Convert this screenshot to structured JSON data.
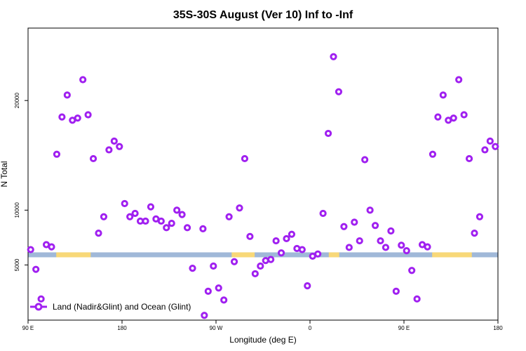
{
  "chart_data": {
    "type": "scatter",
    "title": "35S-30S August (Ver 10)   Inf to -Inf",
    "xlabel": "Longitude (deg E)",
    "ylabel": "N Total",
    "x_ticks": [
      {
        "value": 90,
        "label": "90 E"
      },
      {
        "value": 180,
        "label": "180"
      },
      {
        "value": 270,
        "label": "90 W"
      },
      {
        "value": 360,
        "label": "0"
      },
      {
        "value": 450,
        "label": "90 E"
      },
      {
        "value": 540,
        "label": "180"
      }
    ],
    "y_ticks": [
      {
        "value": 5000,
        "label": "5000"
      },
      {
        "value": 10000,
        "label": "10000"
      },
      {
        "value": 20000,
        "label": "20000"
      }
    ],
    "xlim": [
      90,
      540
    ],
    "ylim": [
      0,
      26000
    ],
    "grid": false,
    "legend_position": "bottom-left",
    "series": [
      {
        "name": "Land (Nadir&Glint) and Ocean (Glint)",
        "color": "#a020f0",
        "points": [
          [
            92.5,
            6400
          ],
          [
            97.5,
            4600
          ],
          [
            102.5,
            1900
          ],
          [
            107.5,
            6850
          ],
          [
            112.5,
            6650
          ],
          [
            117.5,
            15100
          ],
          [
            122.5,
            18500
          ],
          [
            127.5,
            20500
          ],
          [
            132.5,
            18200
          ],
          [
            137.5,
            18400
          ],
          [
            142.5,
            21900
          ],
          [
            147.5,
            18700
          ],
          [
            152.5,
            14700
          ],
          [
            157.5,
            7900
          ],
          [
            162.5,
            9400
          ],
          [
            167.5,
            15500
          ],
          [
            172.5,
            16300
          ],
          [
            177.5,
            15800
          ],
          [
            182.5,
            10600
          ],
          [
            187.5,
            9400
          ],
          [
            192.5,
            9700
          ],
          [
            197.5,
            9000
          ],
          [
            202.5,
            9000
          ],
          [
            207.5,
            10300
          ],
          [
            212.5,
            9200
          ],
          [
            217.5,
            9000
          ],
          [
            222.5,
            8400
          ],
          [
            227.5,
            8800
          ],
          [
            232.5,
            10000
          ],
          [
            237.5,
            9600
          ],
          [
            242.5,
            8400
          ],
          [
            247.5,
            4700
          ],
          [
            257.5,
            8300
          ],
          [
            262.5,
            2600
          ],
          [
            267.5,
            4900
          ],
          [
            272.5,
            2900
          ],
          [
            277.5,
            1800
          ],
          [
            282.5,
            9400
          ],
          [
            287.5,
            5300
          ],
          [
            292.5,
            10200
          ],
          [
            297.5,
            14700
          ],
          [
            302.5,
            7600
          ],
          [
            307.5,
            4200
          ],
          [
            312.5,
            4900
          ],
          [
            317.5,
            5400
          ],
          [
            322.5,
            5500
          ],
          [
            327.5,
            7200
          ],
          [
            332.5,
            6100
          ],
          [
            337.5,
            7400
          ],
          [
            342.5,
            7800
          ],
          [
            347.5,
            6500
          ],
          [
            352.5,
            6400
          ],
          [
            357.5,
            3100
          ],
          [
            362.5,
            5800
          ],
          [
            367.5,
            6000
          ],
          [
            372.5,
            9700
          ],
          [
            377.5,
            17000
          ],
          [
            382.5,
            24000
          ],
          [
            387.5,
            20800
          ],
          [
            392.5,
            8500
          ],
          [
            397.5,
            6600
          ],
          [
            402.5,
            8900
          ],
          [
            407.5,
            7200
          ],
          [
            412.5,
            14600
          ],
          [
            417.5,
            10000
          ],
          [
            422.5,
            8600
          ],
          [
            427.5,
            7200
          ],
          [
            432.5,
            6600
          ],
          [
            437.5,
            8100
          ],
          [
            442.5,
            2600
          ],
          [
            447.5,
            6800
          ],
          [
            452.5,
            6300
          ],
          [
            457.5,
            4500
          ],
          [
            462.5,
            1900
          ],
          [
            467.5,
            6850
          ],
          [
            472.5,
            6650
          ],
          [
            477.5,
            15100
          ],
          [
            482.5,
            18500
          ],
          [
            487.5,
            20500
          ],
          [
            492.5,
            18200
          ],
          [
            497.5,
            18400
          ],
          [
            502.5,
            21900
          ],
          [
            507.5,
            18700
          ],
          [
            512.5,
            14700
          ],
          [
            517.5,
            7900
          ],
          [
            522.5,
            9400
          ],
          [
            527.5,
            15500
          ],
          [
            532.5,
            16300
          ],
          [
            537.5,
            15800
          ]
        ]
      }
    ],
    "outside_point": [
      240,
      400
    ],
    "surface_strip": {
      "ocean_color": "#a0b8d8",
      "land_color": "#f8d878",
      "y_range": [
        5700,
        6150
      ],
      "land_segments": [
        [
          117,
          150
        ],
        [
          285,
          307
        ],
        [
          378,
          388
        ],
        [
          477,
          515
        ]
      ]
    }
  }
}
